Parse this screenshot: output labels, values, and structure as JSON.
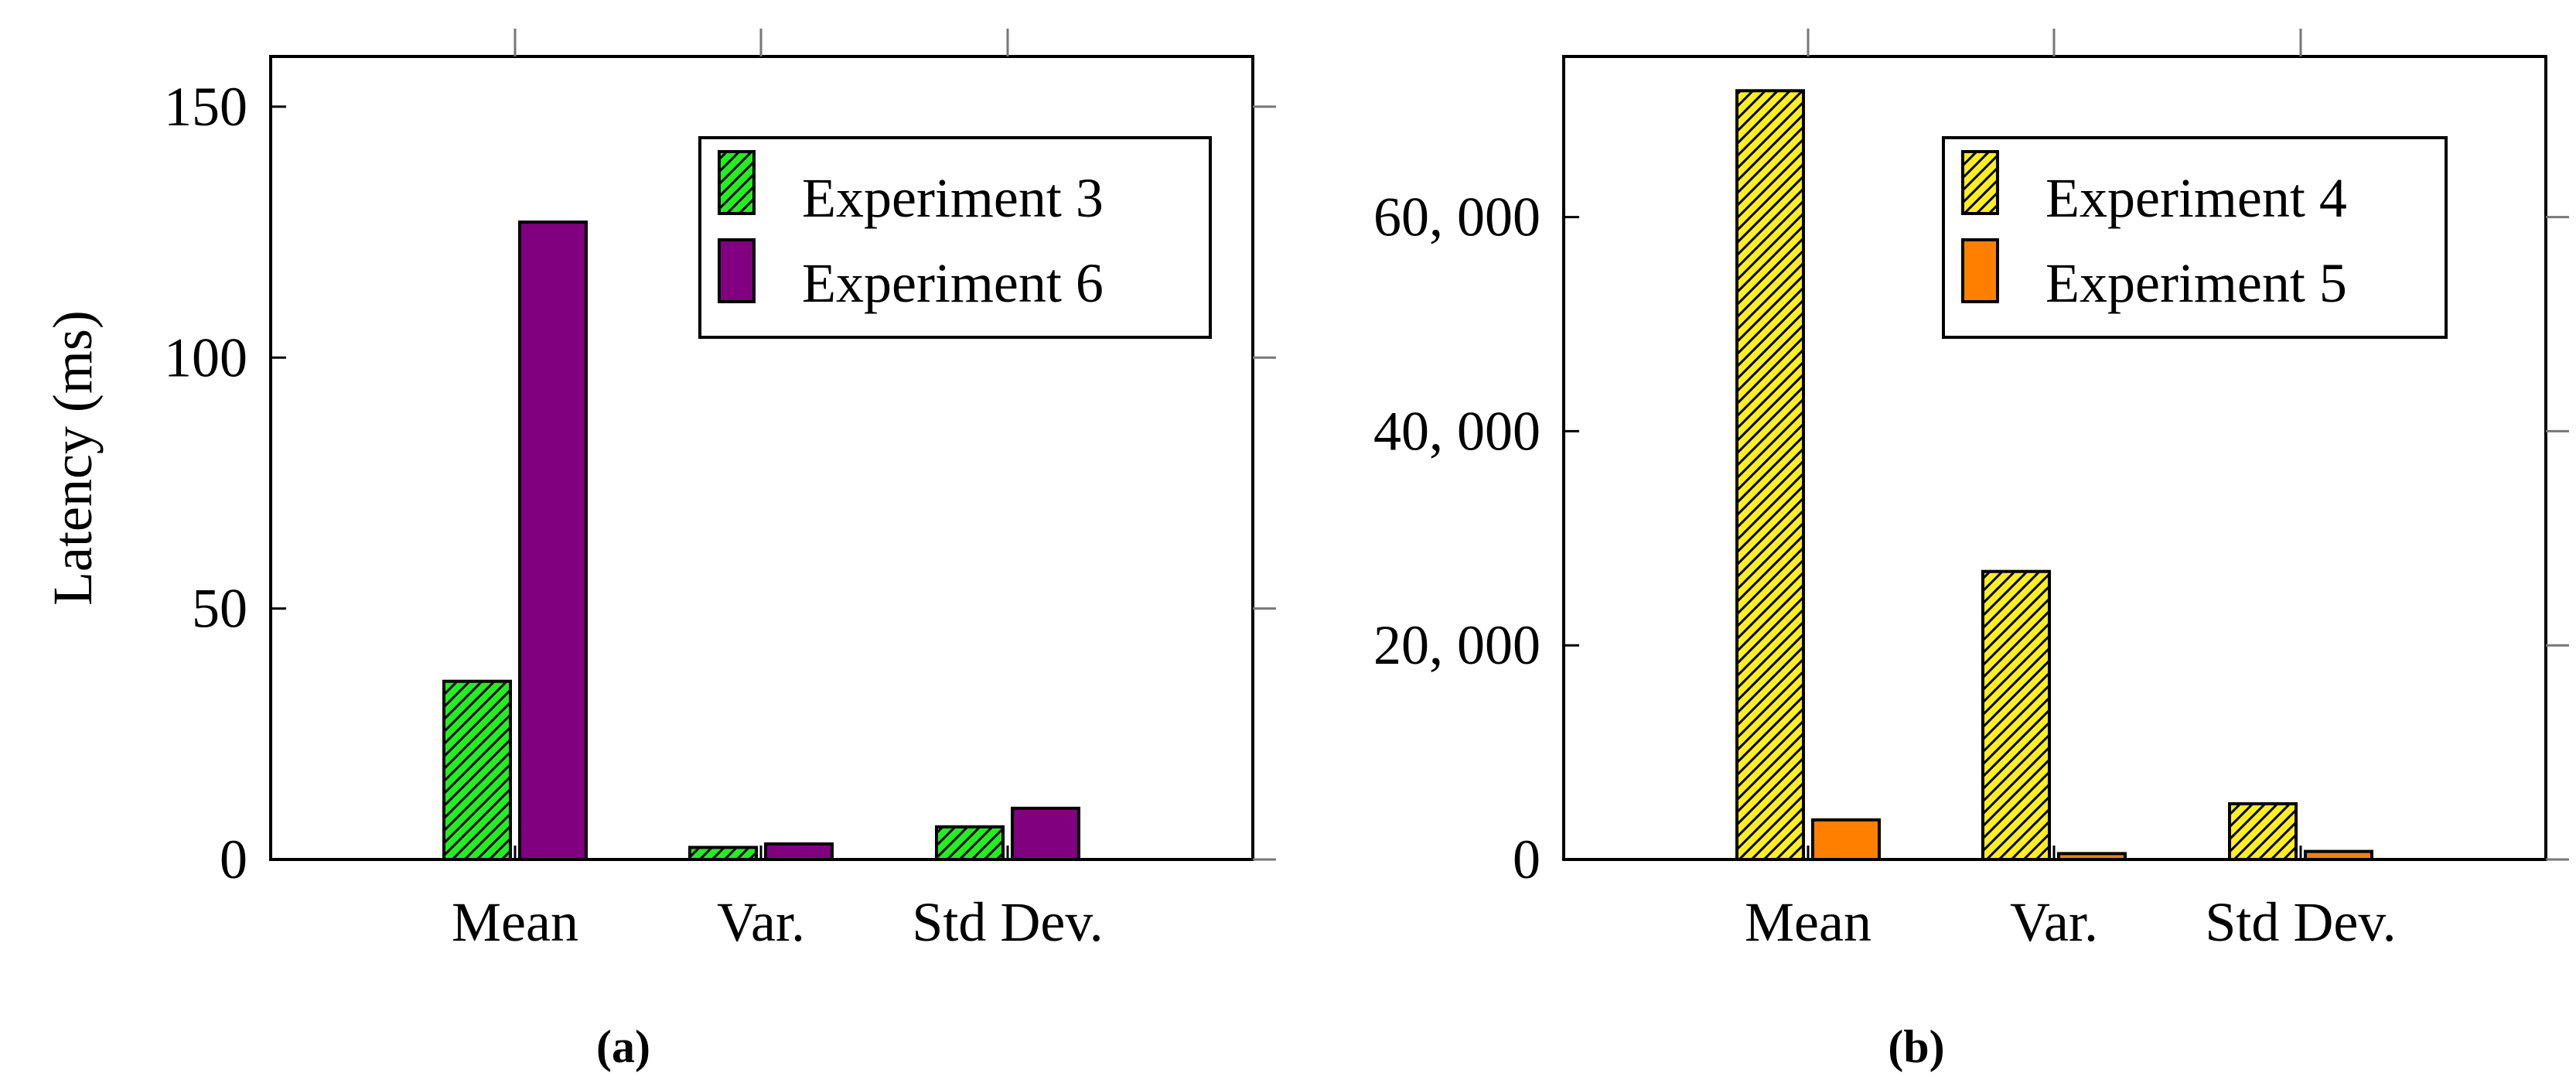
{
  "chart_data": [
    {
      "type": "bar",
      "caption": "(a)",
      "categories": [
        "Mean",
        "Var.",
        "Std Dev."
      ],
      "series": [
        {
          "name": "Experiment 3",
          "values": [
            35.5,
            2.4,
            6.5
          ],
          "color": "#22ee22",
          "hatch": true
        },
        {
          "name": "Experiment 6",
          "values": [
            127,
            3.1,
            10.2
          ],
          "color": "#800080",
          "hatch": false
        }
      ],
      "ylabel": "Latency (ms)",
      "xlabel": "",
      "ylim": [
        0,
        160
      ],
      "yticks": [
        0,
        50,
        100,
        150
      ],
      "ytick_labels": [
        "0",
        "50",
        "100",
        "150"
      ],
      "legend_position": "top-right"
    },
    {
      "type": "bar",
      "caption": "(b)",
      "categories": [
        "Mean",
        "Var.",
        "Std Dev."
      ],
      "series": [
        {
          "name": "Experiment 4",
          "values": [
            71800,
            26900,
            5200
          ],
          "color": "#ffee22",
          "hatch": true
        },
        {
          "name": "Experiment 5",
          "values": [
            3700,
            550,
            750
          ],
          "color": "#ff8000",
          "hatch": false
        }
      ],
      "ylabel": "",
      "xlabel": "",
      "ylim": [
        0,
        75000
      ],
      "yticks": [
        0,
        20000,
        40000,
        60000
      ],
      "ytick_labels": [
        "0",
        "20, 000",
        "40, 000",
        "60, 000"
      ],
      "legend_position": "top-right"
    }
  ]
}
